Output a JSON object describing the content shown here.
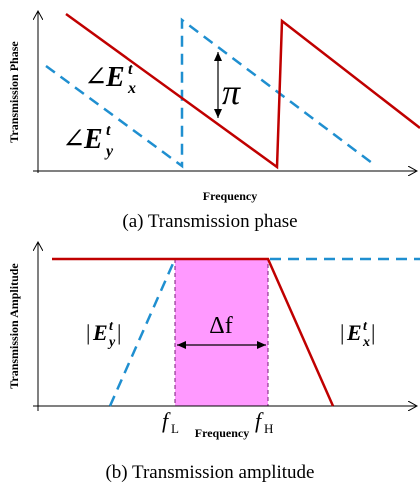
{
  "panel_a": {
    "y_axis_title": "Transmission Phase",
    "x_axis_title": "Frequency",
    "caption": "(a) Transmission phase",
    "label_ex": {
      "angle": "∠",
      "symbol": "E",
      "sup": "t",
      "sub": "x"
    },
    "label_ey": {
      "angle": "∠",
      "symbol": "E",
      "sup": "t",
      "sub": "y"
    },
    "jump_label": "π",
    "colors": {
      "ex": "#c00000",
      "ey": "#1f8fd0"
    }
  },
  "panel_b": {
    "y_axis_title": "Transmission Amplitude",
    "x_axis_title": "Frequency",
    "caption": "(b) Transmission amplitude",
    "label_ey": {
      "bar": "|",
      "symbol": "E",
      "sup": "t",
      "sub": "y"
    },
    "label_ex": {
      "bar": "|",
      "symbol": "E",
      "sup": "t",
      "sub": "x"
    },
    "band_label": "Δf",
    "f_low": {
      "symbol": "f",
      "sub": "L"
    },
    "f_high": {
      "symbol": "f",
      "sub": "H"
    },
    "colors": {
      "ex": "#c00000",
      "ey": "#1f8fd0",
      "band": "#ff99ff"
    }
  }
}
